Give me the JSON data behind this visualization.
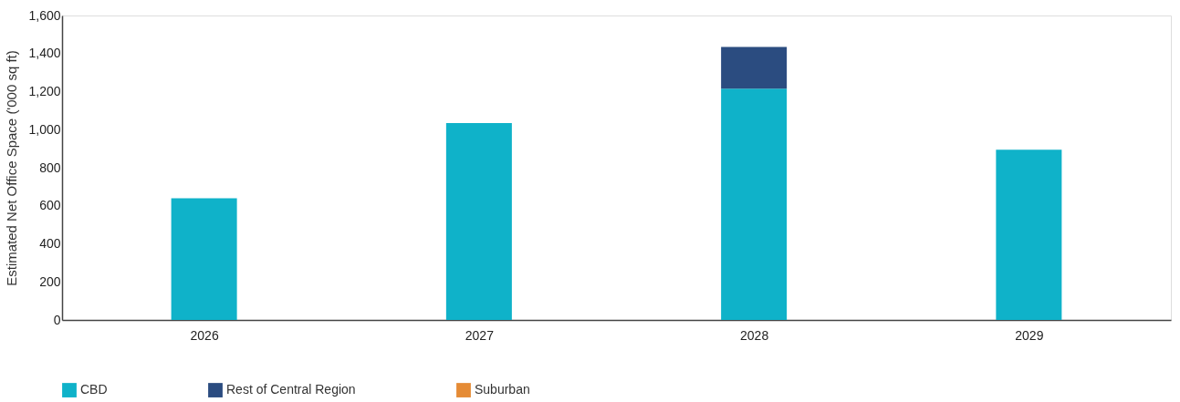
{
  "chart_data": {
    "type": "bar",
    "stacked": true,
    "ylabel": "Estimated Net Office Space ('000 sq ft)",
    "categories": [
      "2026",
      "2027",
      "2028",
      "2029"
    ],
    "series": [
      {
        "name": "CBD",
        "color": "#0fb2c9",
        "values": [
          640,
          1035,
          1215,
          895
        ]
      },
      {
        "name": "Rest of Central Region",
        "color": "#2b4c80",
        "values": [
          null,
          null,
          220,
          null
        ]
      },
      {
        "name": "Suburban",
        "color": "#e58b35",
        "values": [
          null,
          null,
          null,
          null
        ]
      }
    ],
    "ylim": [
      0,
      1600
    ],
    "yticks": [
      0,
      200,
      400,
      600,
      800,
      {
        "value": 1000,
        "label": "1,000"
      },
      {
        "value": 1200,
        "label": "1,200"
      },
      {
        "value": 1400,
        "label": "1,400"
      },
      {
        "value": 1600,
        "label": "1,600"
      }
    ],
    "grid": false,
    "legend": "bottom"
  }
}
